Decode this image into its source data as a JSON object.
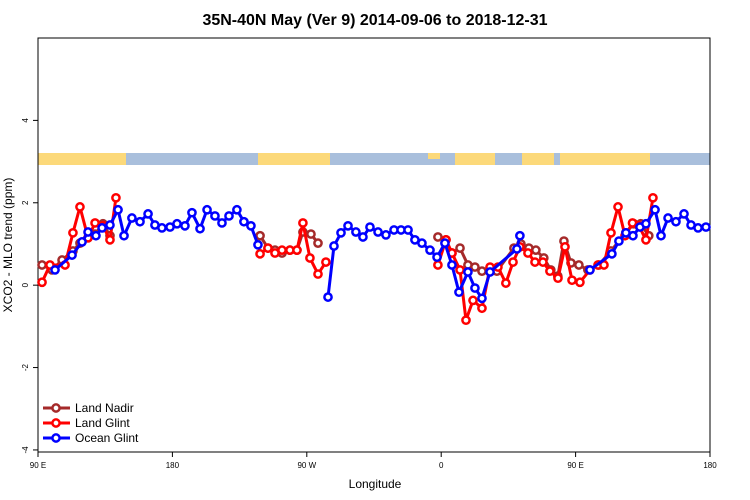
{
  "chart_data": {
    "type": "line",
    "title": "35N-40N May (Ver 9)   2014-09-06 to 2018-12-31",
    "x_label": "Longitude",
    "y_label": "XCO2 - MLO trend (ppm)",
    "xlim": [
      90,
      540
    ],
    "ylim": [
      -4.05,
      6
    ],
    "xticks": [
      {
        "value": 90,
        "label": "90 E"
      },
      {
        "value": 180,
        "label": "180"
      },
      {
        "value": 270,
        "label": "90 W"
      },
      {
        "value": 360,
        "label": "0"
      },
      {
        "value": 450,
        "label": "90 E"
      },
      {
        "value": 540,
        "label": "180"
      }
    ],
    "yticks": [
      -4,
      -2,
      0,
      2,
      4
    ],
    "legend": "bottom-left",
    "series": [
      {
        "name": "Land Nadir",
        "color": "#a52a2a",
        "x": [
          92.7,
          99.4,
          106.1,
          113.4,
          118.1,
          123.5,
          128.2,
          133.5,
          138.2,
          null,
          238.7,
          244,
          248.7,
          253.4,
          258.7,
          263.4,
          267.4,
          272.8,
          277.5,
          null,
          357.8,
          363.2,
          367.2,
          372.6,
          377.9,
          382.6,
          387.3,
          392.7,
          397.3,
          408.7,
          413.4,
          418.7,
          423.4,
          428.7,
          433.4,
          438.1,
          442.2,
          446.9,
          452.2,
          458.2,
          465.6,
          473.6,
          483.6,
          489,
          493.6,
          499
        ],
        "values": [
          0.49,
          0.37,
          0.61,
          0.83,
          1.02,
          1.15,
          1.24,
          1.49,
          1.2,
          null,
          1.2,
          0.9,
          0.85,
          0.78,
          0.85,
          0.85,
          1.29,
          1.24,
          1.02,
          null,
          1.17,
          1.1,
          0.78,
          0.9,
          0.49,
          0.44,
          0.34,
          0.41,
          0.34,
          0.9,
          1.0,
          0.9,
          0.85,
          0.66,
          0.37,
          0.22,
          1.07,
          0.54,
          0.49,
          0.37,
          0.49,
          0.83,
          1.27,
          1.49,
          1.49,
          1.2
        ]
      },
      {
        "name": "Land Glint",
        "color": "#ff0000",
        "x": [
          92.7,
          98,
          108.1,
          113.4,
          118.1,
          123.5,
          128.2,
          133.5,
          138.2,
          142.2,
          null,
          238.7,
          244,
          248.7,
          253.4,
          258.7,
          263.4,
          267.4,
          272.1,
          277.5,
          282.8,
          null,
          357.8,
          363.2,
          367.2,
          372.6,
          376.6,
          381.3,
          387.3,
          392.7,
          398,
          403.3,
          408.1,
          412.7,
          418.1,
          422.8,
          428.1,
          432.8,
          438.2,
          442.9,
          447.6,
          452.9,
          459.6,
          465,
          469,
          473.7,
          478.4,
          483.1,
          488.1,
          492.4,
          497.1,
          501.8
        ],
        "values": [
          0.07,
          0.49,
          0.49,
          1.27,
          1.9,
          1.15,
          1.51,
          1.44,
          1.1,
          2.12,
          null,
          0.76,
          0.9,
          0.78,
          0.85,
          0.85,
          0.85,
          1.51,
          0.66,
          0.27,
          0.56,
          null,
          0.49,
          1.1,
          0.78,
          0.37,
          -0.85,
          -0.37,
          -0.56,
          0.44,
          0.44,
          0.05,
          0.56,
          0.93,
          0.78,
          0.56,
          0.56,
          0.34,
          0.17,
          0.93,
          0.12,
          0.07,
          0.37,
          0.49,
          0.49,
          1.27,
          1.9,
          1.2,
          1.51,
          1.44,
          1.1,
          2.12
        ]
      },
      {
        "name": "Ocean Glint",
        "color": "#0000ff",
        "x": [
          101.4,
          112.8,
          119.5,
          123.5,
          128.8,
          132.9,
          138.2,
          143.6,
          147.6,
          152.9,
          158.3,
          163.7,
          168.3,
          173,
          178.4,
          183.1,
          188.4,
          193.1,
          198.5,
          203.2,
          208.5,
          213.2,
          217.9,
          223.2,
          227.9,
          232.6,
          237.3,
          null,
          284.2,
          288.2,
          292.9,
          297.6,
          302.9,
          307.6,
          312.3,
          317.7,
          323,
          328.4,
          333.1,
          337.8,
          342.4,
          347.1,
          352.5,
          357.2,
          362.5,
          367.2,
          371.9,
          377.9,
          382.6,
          387.3,
          392.7,
          410.7,
          412.7,
          null,
          459.6,
          474.3,
          479,
          483.7,
          488.4,
          493.1,
          497.1,
          503.2,
          507.2,
          511.9,
          517.2,
          522.6,
          527.3,
          532,
          537.3
        ],
        "values": [
          0.37,
          0.73,
          1.05,
          1.29,
          1.2,
          1.39,
          1.46,
          1.83,
          1.2,
          1.63,
          1.54,
          1.73,
          1.46,
          1.39,
          1.41,
          1.49,
          1.44,
          1.76,
          1.37,
          1.83,
          1.68,
          1.51,
          1.68,
          1.83,
          1.54,
          1.44,
          0.98,
          null,
          -0.29,
          0.95,
          1.27,
          1.44,
          1.29,
          1.17,
          1.41,
          1.29,
          1.22,
          1.34,
          1.34,
          1.34,
          1.1,
          1.02,
          0.85,
          0.68,
          1.02,
          0.49,
          -0.17,
          0.32,
          -0.07,
          -0.32,
          0.32,
          0.88,
          1.2,
          null,
          0.37,
          0.76,
          1.07,
          1.27,
          1.2,
          1.41,
          1.49,
          1.83,
          1.2,
          1.63,
          1.54,
          1.73,
          1.46,
          1.39,
          1.41
        ]
      }
    ]
  }
}
